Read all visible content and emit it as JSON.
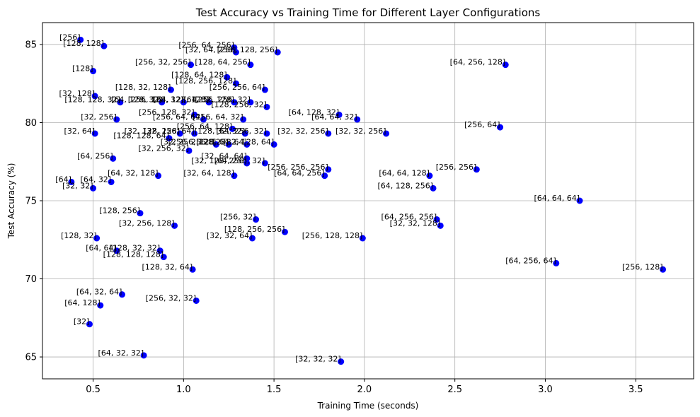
{
  "chart_data": {
    "type": "scatter",
    "title": "Test Accuracy vs Training Time for Different Layer Configurations",
    "xlabel": "Training Time (seconds)",
    "ylabel": "Test Accuracy (%)",
    "xlim": [
      0.22,
      3.82
    ],
    "ylim": [
      63.6,
      86.4
    ],
    "xticks": [
      0.5,
      1.0,
      1.5,
      2.0,
      2.5,
      3.0,
      3.5
    ],
    "xtick_labels": [
      "0.5",
      "1.0",
      "1.5",
      "2.0",
      "2.5",
      "3.0",
      "3.5"
    ],
    "yticks": [
      65,
      70,
      75,
      80,
      85
    ],
    "ytick_labels": [
      "65",
      "70",
      "75",
      "80",
      "85"
    ],
    "grid": true,
    "marker_color": "#0000ff",
    "points": [
      {
        "label": "[256]",
        "x": 0.43,
        "y": 85.3
      },
      {
        "label": "[128, 128]",
        "x": 0.56,
        "y": 84.9
      },
      {
        "label": "[128]",
        "x": 0.5,
        "y": 83.3
      },
      {
        "label": "[32, 128]",
        "x": 0.51,
        "y": 81.7
      },
      {
        "label": "[32, 256]",
        "x": 0.63,
        "y": 80.2
      },
      {
        "label": "[32, 64]",
        "x": 0.51,
        "y": 79.3
      },
      {
        "label": "[64, 256]",
        "x": 0.61,
        "y": 77.7
      },
      {
        "label": "[64]",
        "x": 0.38,
        "y": 76.2
      },
      {
        "label": "[64, 32]",
        "x": 0.6,
        "y": 76.2
      },
      {
        "label": "[32, 32]",
        "x": 0.5,
        "y": 75.8
      },
      {
        "label": "[128, 256]",
        "x": 0.76,
        "y": 74.2
      },
      {
        "label": "[128, 32]",
        "x": 0.52,
        "y": 72.6
      },
      {
        "label": "[64, 64]",
        "x": 0.63,
        "y": 71.8
      },
      {
        "label": "[128, 32, 32]",
        "x": 0.87,
        "y": 71.8
      },
      {
        "label": "[128, 128, 128]",
        "x": 0.89,
        "y": 71.4
      },
      {
        "label": "[128, 32, 64]",
        "x": 1.05,
        "y": 70.6
      },
      {
        "label": "[64, 32, 64]",
        "x": 0.66,
        "y": 69.0
      },
      {
        "label": "[64, 128]",
        "x": 0.54,
        "y": 68.3
      },
      {
        "label": "[256, 32, 32]",
        "x": 1.07,
        "y": 68.6
      },
      {
        "label": "[32]",
        "x": 0.48,
        "y": 67.1
      },
      {
        "label": "[64, 32, 32]",
        "x": 0.78,
        "y": 65.1
      },
      {
        "label": "[32, 32, 32]",
        "x": 1.87,
        "y": 64.7
      },
      {
        "label": "[256, 64, 256]",
        "x": 1.28,
        "y": 84.8
      },
      {
        "label": "[32, 64, 256]",
        "x": 1.29,
        "y": 84.5
      },
      {
        "label": "[256, 128, 256]",
        "x": 1.52,
        "y": 84.5
      },
      {
        "label": "[256, 32, 256]",
        "x": 1.04,
        "y": 83.7
      },
      {
        "label": "[128, 64, 256]",
        "x": 1.37,
        "y": 83.7
      },
      {
        "label": "[128, 64, 128]",
        "x": 1.24,
        "y": 82.9
      },
      {
        "label": "[128, 256, 128]",
        "x": 1.29,
        "y": 82.5
      },
      {
        "label": "[128, 32, 128]",
        "x": 0.93,
        "y": 82.1
      },
      {
        "label": "[256, 256, 64]",
        "x": 1.45,
        "y": 82.1
      },
      {
        "label": "[64, 256, 128]",
        "x": 2.78,
        "y": 83.7
      },
      {
        "label": "[128, 128, 32]",
        "x": 0.65,
        "y": 81.3
      },
      {
        "label": "[64, 128, 32]",
        "x": 0.88,
        "y": 81.3
      },
      {
        "label": "[256, 128, 32]",
        "x": 1.0,
        "y": 81.3
      },
      {
        "label": "[64, 128, 128]",
        "x": 1.14,
        "y": 81.3
      },
      {
        "label": "[64, 32, 128]",
        "x": 1.28,
        "y": 81.3
      },
      {
        "label": "[256, 256, 32]",
        "x": 1.37,
        "y": 81.3
      },
      {
        "label": "[128, 256, 32]",
        "x": 1.46,
        "y": 81.0
      },
      {
        "label": "[64, 128, 32]",
        "x": 1.86,
        "y": 80.5
      },
      {
        "label": "[64, 64, 32]",
        "x": 1.96,
        "y": 80.2
      },
      {
        "label": "[256, 128, 32]",
        "x": 1.06,
        "y": 80.5
      },
      {
        "label": "[256, 64, 64]",
        "x": 1.11,
        "y": 80.2
      },
      {
        "label": "[256, 64, 32]",
        "x": 1.33,
        "y": 80.2
      },
      {
        "label": "[32, 128, 128]",
        "x": 0.98,
        "y": 79.3
      },
      {
        "label": "[32, 256, 64]",
        "x": 1.06,
        "y": 79.3
      },
      {
        "label": "[256, 64, 128]",
        "x": 1.27,
        "y": 79.6
      },
      {
        "label": "[128, 32, 32]",
        "x": 1.34,
        "y": 79.3
      },
      {
        "label": "[64, 256, 32]",
        "x": 1.46,
        "y": 79.3
      },
      {
        "label": "[32, 32, 256]",
        "x": 1.8,
        "y": 79.3
      },
      {
        "label": "[32, 32, 256]",
        "x": 2.12,
        "y": 79.3
      },
      {
        "label": "[256, 64]",
        "x": 2.75,
        "y": 79.7
      },
      {
        "label": "[128, 128, 64]",
        "x": 0.92,
        "y": 79.0
      },
      {
        "label": "[32, 256, 128]",
        "x": 1.18,
        "y": 78.6
      },
      {
        "label": "[256, 256, 128]",
        "x": 1.25,
        "y": 78.6
      },
      {
        "label": "[128, 64, 64]",
        "x": 1.35,
        "y": 78.6
      },
      {
        "label": "[32, 128, 64]",
        "x": 1.5,
        "y": 78.6
      },
      {
        "label": "[32, 256, 32]",
        "x": 1.03,
        "y": 78.2
      },
      {
        "label": "[32, 64, 64]",
        "x": 1.35,
        "y": 77.7
      },
      {
        "label": "[32, 128, 256]",
        "x": 1.35,
        "y": 77.4
      },
      {
        "label": "[64, 256, 32]",
        "x": 1.45,
        "y": 77.4
      },
      {
        "label": "[256, 256, 256]",
        "x": 1.8,
        "y": 77.0
      },
      {
        "label": "[64, 32, 128]",
        "x": 0.86,
        "y": 76.6
      },
      {
        "label": "[32, 64, 128]",
        "x": 1.28,
        "y": 76.6
      },
      {
        "label": "[64, 64, 256]",
        "x": 1.78,
        "y": 76.6
      },
      {
        "label": "[64, 64, 128]",
        "x": 2.36,
        "y": 76.6
      },
      {
        "label": "[256, 256]",
        "x": 2.62,
        "y": 77.0
      },
      {
        "label": "[64, 128, 256]",
        "x": 2.38,
        "y": 75.8
      },
      {
        "label": "[64, 64, 64]",
        "x": 3.19,
        "y": 75.0
      },
      {
        "label": "[32, 256, 128]",
        "x": 0.95,
        "y": 73.4
      },
      {
        "label": "[256, 32]",
        "x": 1.4,
        "y": 73.8
      },
      {
        "label": "[128, 256, 256]",
        "x": 1.56,
        "y": 73.0
      },
      {
        "label": "[32, 32, 64]",
        "x": 1.38,
        "y": 72.6
      },
      {
        "label": "[256, 128, 128]",
        "x": 1.99,
        "y": 72.6
      },
      {
        "label": "[64, 256, 256]",
        "x": 2.4,
        "y": 73.8
      },
      {
        "label": "[32, 32, 128]",
        "x": 2.42,
        "y": 73.4
      },
      {
        "label": "[64, 256, 64]",
        "x": 3.06,
        "y": 71.0
      },
      {
        "label": "[256, 128]",
        "x": 3.65,
        "y": 70.6
      }
    ]
  }
}
